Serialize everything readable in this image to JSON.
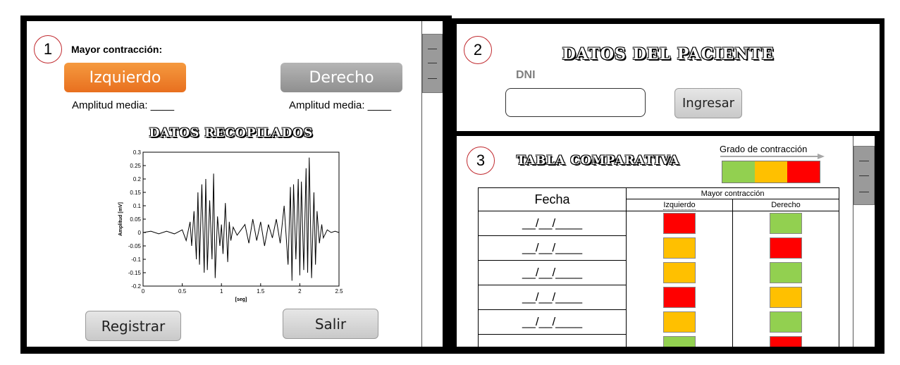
{
  "panel1": {
    "number": "1",
    "heading": "Mayor contracción:",
    "left_button": "Izquierdo",
    "right_button": "Derecho",
    "left_amplitude": "Amplitud media: ____",
    "right_amplitude": "Amplitud media: ____",
    "section_title": "DATOS RECOPILADOS",
    "register_button": "Registrar",
    "exit_button": "Salir"
  },
  "panel2": {
    "number": "2",
    "title": "DATOS DEL PACIENTE",
    "dni_label": "DNI",
    "dni_value": "",
    "submit_button": "Ingresar"
  },
  "panel3": {
    "number": "3",
    "title": "TABLA COMPARATIVA",
    "legend_label": "Grado de contracción",
    "legend_colors": [
      "#92d050",
      "#ffc000",
      "#ff0000"
    ],
    "col_date": "Fecha",
    "col_group": "Mayor contracción",
    "col_left": "Izquierdo",
    "col_right": "Derecho",
    "rows": [
      {
        "date": "__/__/____",
        "left": "#ff0000",
        "right": "#92d050"
      },
      {
        "date": "__/__/____",
        "left": "#ffc000",
        "right": "#ff0000"
      },
      {
        "date": "__/__/____",
        "left": "#ffc000",
        "right": "#92d050"
      },
      {
        "date": "__/__/____",
        "left": "#ff0000",
        "right": "#ffc000"
      },
      {
        "date": "__/__/____",
        "left": "#ffc000",
        "right": "#92d050"
      },
      {
        "date": "",
        "left": "#92d050",
        "right": "#ff0000"
      }
    ]
  },
  "chart_data": {
    "type": "line",
    "title": "",
    "xlabel": "[seg]",
    "ylabel": "Amplitud [mV]",
    "xlim": [
      0,
      2.5
    ],
    "ylim": [
      -0.2,
      0.3
    ],
    "x_ticks": [
      "0",
      "0.5",
      "1",
      "1.5",
      "2",
      "2.5"
    ],
    "y_ticks": [
      "0.3",
      "0.25",
      "0.2",
      "0.15",
      "0.1",
      "0.05",
      "0",
      "-0.05",
      "-0.1",
      "-0.15",
      "-0.2"
    ],
    "series": [
      {
        "x": [
          0,
          0.1,
          0.2,
          0.3,
          0.4,
          0.5,
          0.55,
          0.6,
          0.62,
          0.65,
          0.68,
          0.7,
          0.72,
          0.75,
          0.78,
          0.8,
          0.82,
          0.85,
          0.88,
          0.9,
          0.92,
          0.95,
          0.98,
          1.0,
          1.02,
          1.05,
          1.08,
          1.1,
          1.12,
          1.15,
          1.2,
          1.25,
          1.3,
          1.35,
          1.4,
          1.45,
          1.5,
          1.55,
          1.6,
          1.65,
          1.7,
          1.75,
          1.8,
          1.85,
          1.88,
          1.9,
          1.92,
          1.95,
          1.98,
          2.0,
          2.02,
          2.05,
          2.08,
          2.1,
          2.12,
          2.15,
          2.18,
          2.2,
          2.22,
          2.25,
          2.28,
          2.3,
          2.35,
          2.4,
          2.45,
          2.5
        ],
        "y": [
          0,
          0.005,
          -0.005,
          0.005,
          -0.005,
          0.01,
          -0.03,
          0.04,
          -0.05,
          0.08,
          -0.1,
          0.15,
          -0.12,
          0.18,
          -0.15,
          0.2,
          -0.14,
          0.12,
          -0.1,
          0.22,
          -0.17,
          0.06,
          -0.05,
          0.03,
          -0.08,
          0.11,
          -0.11,
          0.04,
          -0.03,
          0.02,
          -0.01,
          0.01,
          0.03,
          -0.04,
          0.05,
          -0.03,
          0.04,
          -0.05,
          0.03,
          -0.02,
          0.05,
          -0.04,
          0.1,
          -0.12,
          0.17,
          -0.18,
          0.18,
          -0.1,
          0.2,
          -0.16,
          0.19,
          -0.14,
          0.24,
          -0.15,
          0.28,
          -0.17,
          0.15,
          -0.12,
          0.08,
          -0.04,
          0.03,
          -0.02,
          0.01,
          0.0,
          0.005,
          0.0
        ]
      }
    ]
  }
}
